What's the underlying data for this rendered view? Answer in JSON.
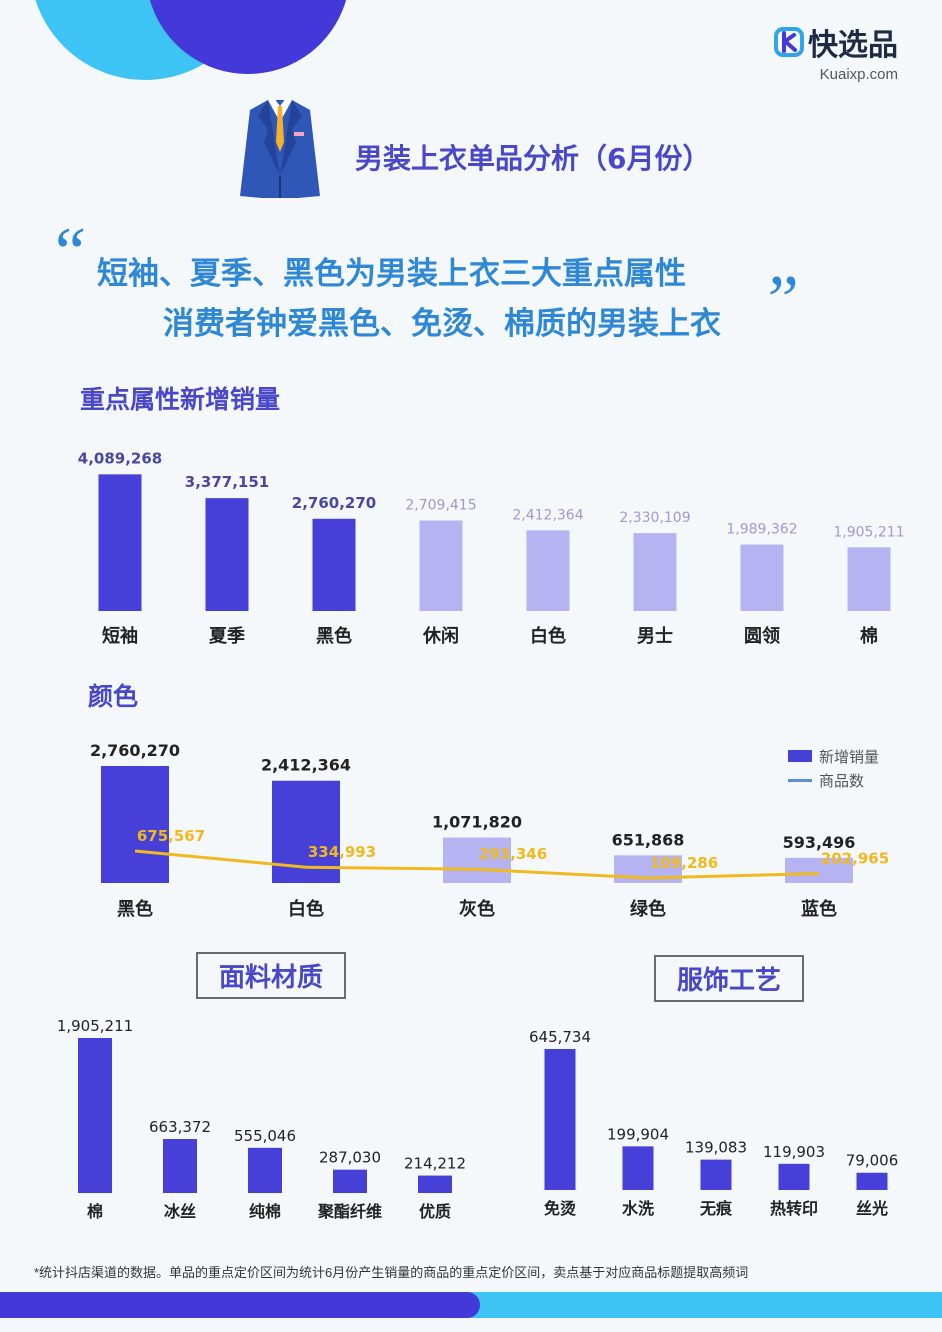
{
  "brand": {
    "name": "快选品",
    "url": "Kuaixp.com"
  },
  "title": "男装上衣单品分析（6月份）",
  "headline": {
    "line1": "短袖、夏季、黑色为男装上衣三大重点属性",
    "line2": "消费者钟爱黑色、免烫、棉质的男装上衣"
  },
  "sections": {
    "attributes": "重点属性新增销量",
    "color": "颜色",
    "fabric": "面料材质",
    "craft": "服饰工艺"
  },
  "legend": {
    "bar": "新增销量",
    "line": "商品数"
  },
  "footnote": "*统计抖店渠道的数据。单品的重点定价区间为统计6月份产生销量的商品的重点定价区间，卖点基于对应商品标题提取高频词",
  "colors": {
    "dark_bar": "#4640d9",
    "light_bar": "#b6b3f2",
    "line": "#f0b91d",
    "title": "#4a47c9",
    "headline": "#2f88d6"
  },
  "chart_data": [
    {
      "id": "attributes",
      "type": "bar",
      "title": "重点属性新增销量",
      "categories": [
        "短袖",
        "夏季",
        "黑色",
        "休闲",
        "白色",
        "男士",
        "圆领",
        "棉"
      ],
      "values": [
        4089268,
        3377151,
        2760270,
        2709415,
        2412364,
        2330109,
        1989362,
        1905211
      ],
      "labels": [
        "4,089,268",
        "3,377,151",
        "2,760,270",
        "2,709,415",
        "2,412,364",
        "2,330,109",
        "1,989,362",
        "1,905,211"
      ],
      "highlighted": [
        true,
        true,
        true,
        false,
        false,
        false,
        false,
        false
      ],
      "ylim": [
        0,
        4100000
      ]
    },
    {
      "id": "color",
      "type": "bar",
      "title": "颜色",
      "categories": [
        "黑色",
        "白色",
        "灰色",
        "绿色",
        "蓝色"
      ],
      "series": [
        {
          "name": "新增销量",
          "type": "bar",
          "values": [
            2760270,
            2412364,
            1071820,
            651868,
            593496
          ],
          "labels": [
            "2,760,270",
            "2,412,364",
            "1,071,820",
            "651,868",
            "593,496"
          ]
        },
        {
          "name": "商品数",
          "type": "line",
          "values": [
            675567,
            334993,
            293346,
            109286,
            202965
          ],
          "labels": [
            "675,567",
            "334,993",
            "293,346",
            "109,286",
            "202,965"
          ]
        }
      ],
      "highlighted": [
        true,
        true,
        false,
        false,
        false
      ]
    },
    {
      "id": "fabric",
      "type": "bar",
      "title": "面料材质",
      "categories": [
        "棉",
        "冰丝",
        "纯棉",
        "聚酯纤维",
        "优质"
      ],
      "values": [
        1905211,
        663372,
        555046,
        287030,
        214212
      ],
      "labels": [
        "1,905,211",
        "663,372",
        "555,046",
        "287,030",
        "214,212"
      ]
    },
    {
      "id": "craft",
      "type": "bar",
      "title": "服饰工艺",
      "categories": [
        "免烫",
        "水洗",
        "无痕",
        "热转印",
        "丝光"
      ],
      "values": [
        645734,
        199904,
        139083,
        119903,
        79006
      ],
      "labels": [
        "645,734",
        "199,904",
        "139,083",
        "119,903",
        "79,006"
      ]
    }
  ]
}
